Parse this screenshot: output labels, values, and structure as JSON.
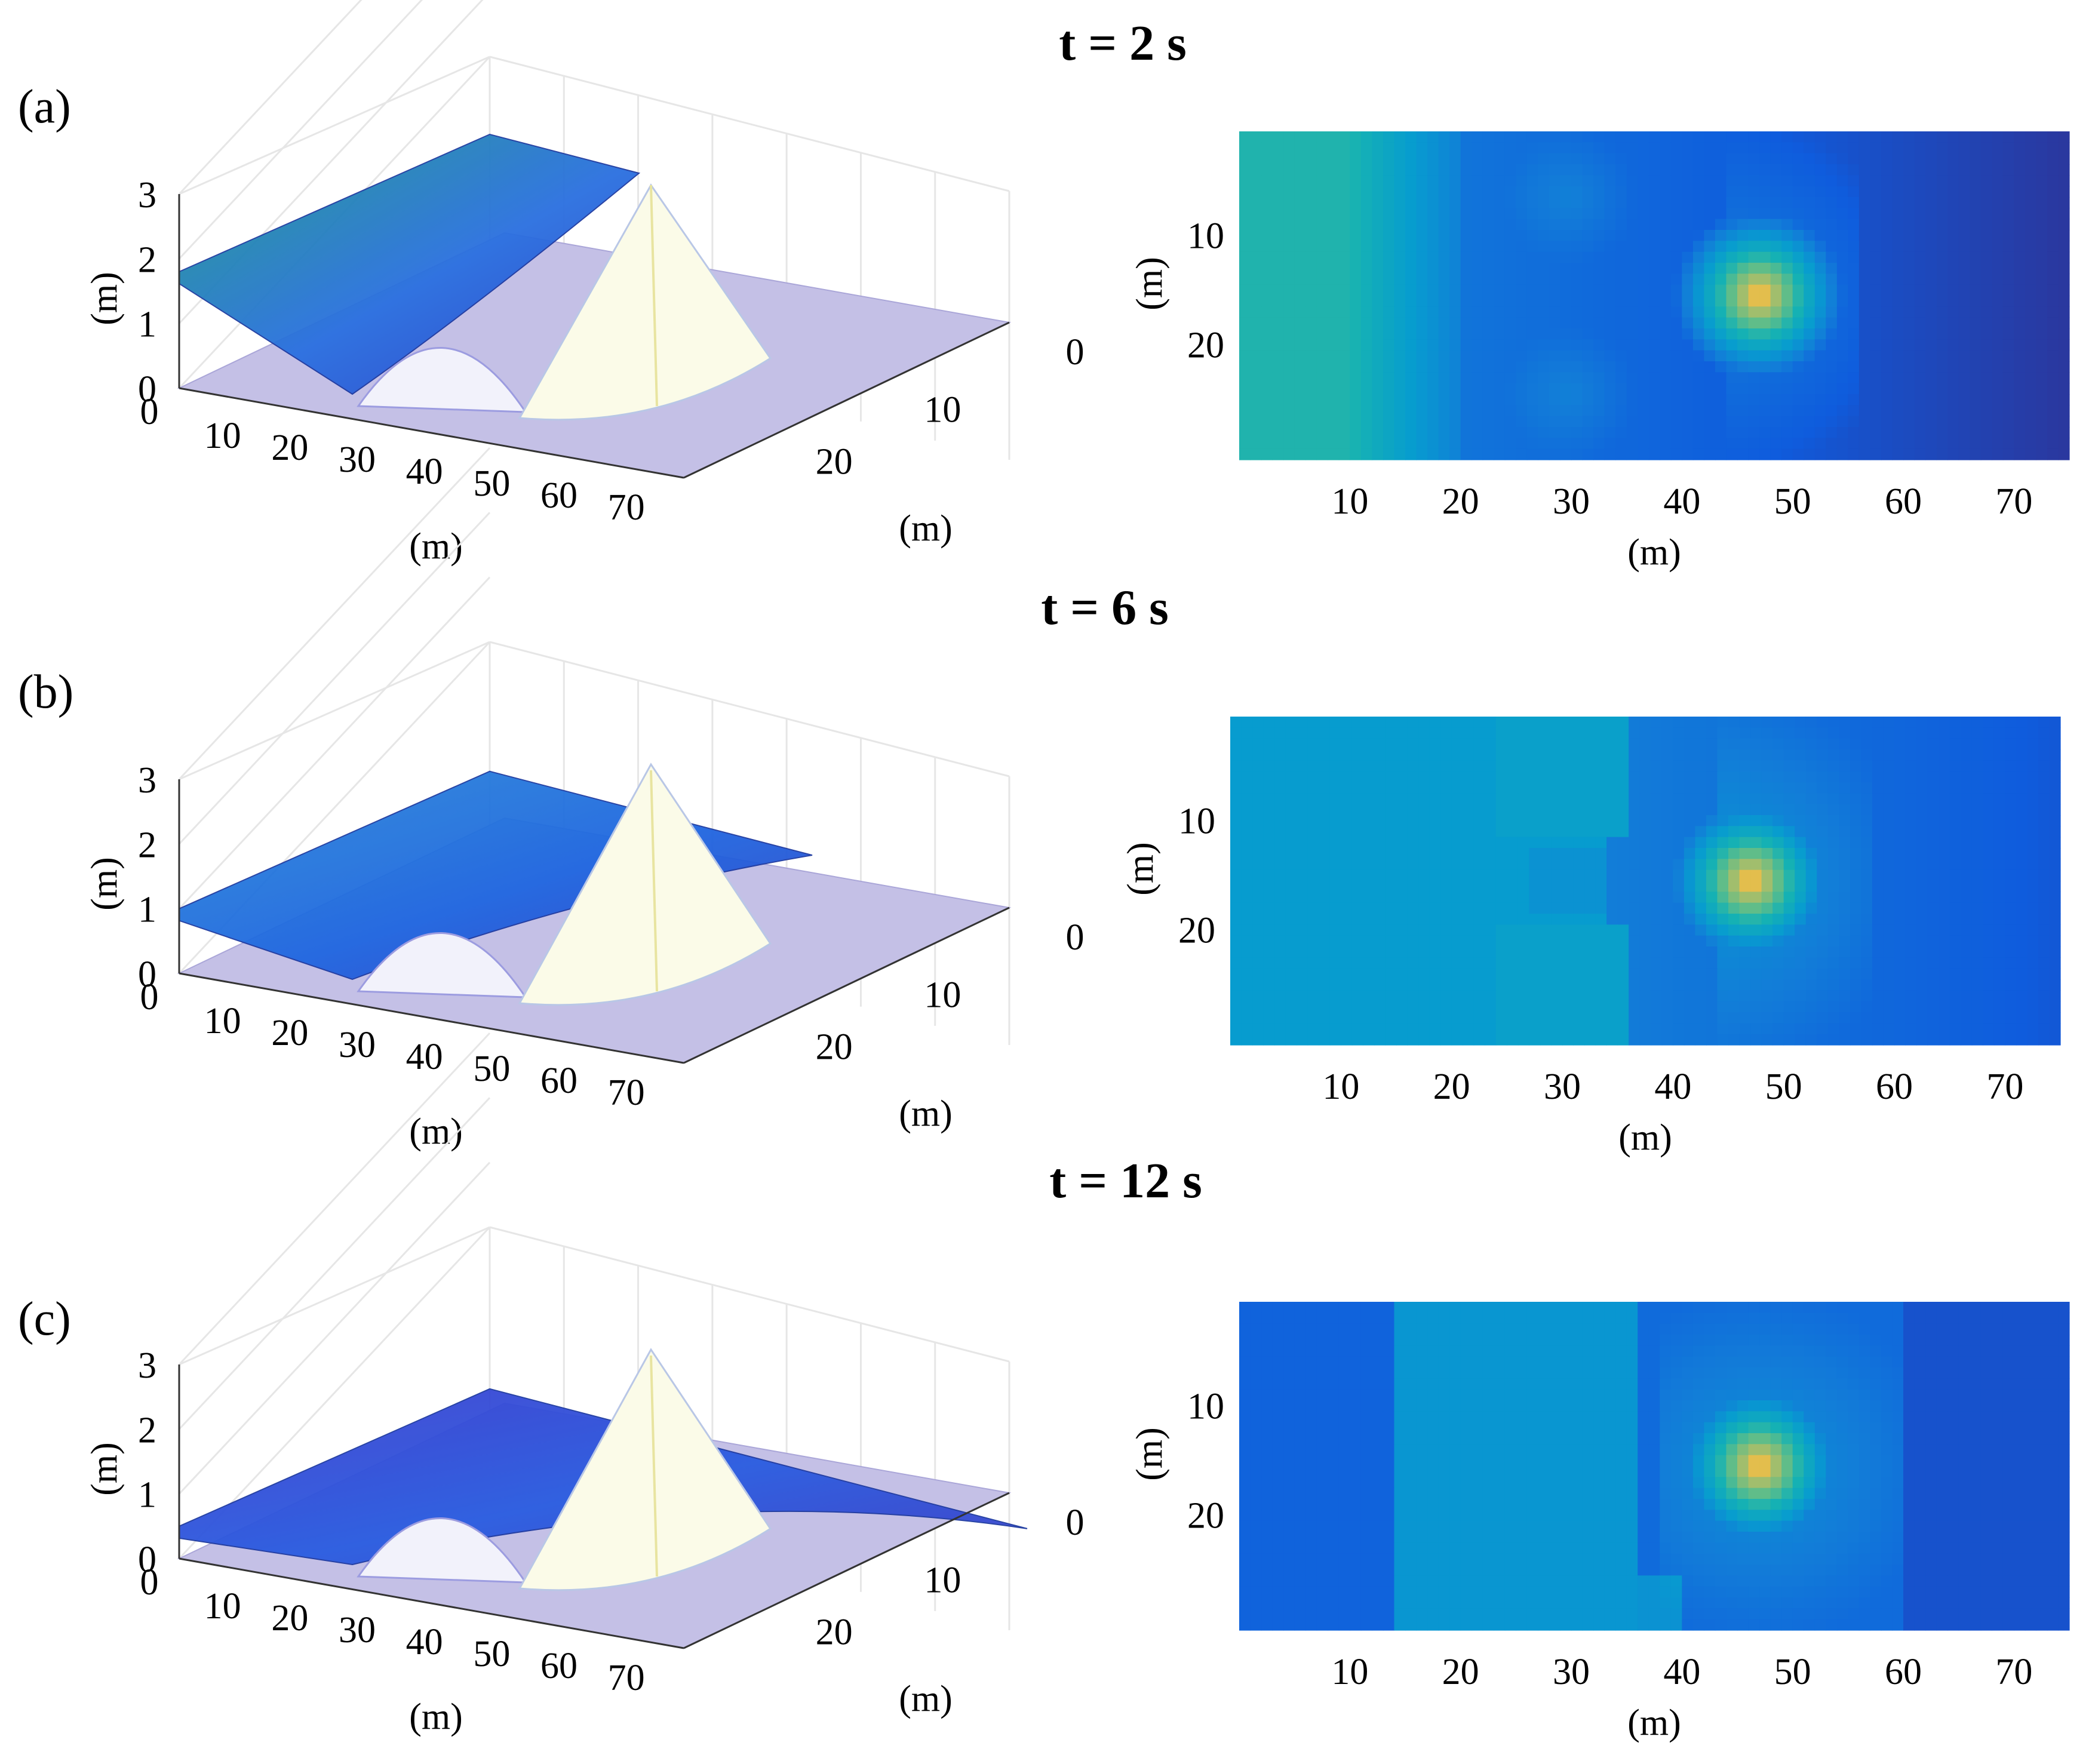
{
  "figure": {
    "panels": [
      {
        "label": "(a)",
        "title": "t = 2 s"
      },
      {
        "label": "(b)",
        "title": "t = 6 s"
      },
      {
        "label": "(c)",
        "title": "t = 12 s"
      }
    ]
  },
  "chart_data": [
    {
      "type": "surface3d",
      "panel": "(a)",
      "time_s": 2,
      "title": "t = 2 s",
      "x": {
        "label": "(m)",
        "ticks": [
          "0",
          "10",
          "20",
          "30",
          "40",
          "50",
          "60",
          "70"
        ],
        "range": [
          0,
          75
        ]
      },
      "y": {
        "label": "(m)",
        "ticks": [
          "0",
          "10",
          "20"
        ],
        "range": [
          0,
          30
        ]
      },
      "z": {
        "label": "(m)",
        "ticks": [
          "0",
          "1",
          "2",
          "3"
        ],
        "range": [
          0,
          3
        ]
      },
      "water_level_upstream_m": 1.8,
      "obstacles": [
        {
          "type": "large cone",
          "x": 47,
          "y": 15,
          "peak_m": 3.0
        },
        {
          "type": "small mound",
          "x": 30,
          "y": 6,
          "peak_m": 1.0
        },
        {
          "type": "small mound",
          "x": 30,
          "y": 24,
          "peak_m": 1.0
        }
      ]
    },
    {
      "type": "heatmap",
      "panel": "(a)",
      "time_s": 2,
      "x": {
        "label": "(m)",
        "ticks": [
          "10",
          "20",
          "30",
          "40",
          "50",
          "60",
          "70"
        ],
        "range": [
          0,
          75
        ]
      },
      "y": {
        "label": "(m)",
        "ticks": [
          "10",
          "20"
        ],
        "range": [
          0,
          30
        ]
      },
      "colormap": "parula"
    },
    {
      "type": "surface3d",
      "panel": "(b)",
      "time_s": 6,
      "title": "t = 6 s",
      "x": {
        "label": "(m)",
        "ticks": [
          "0",
          "10",
          "20",
          "30",
          "40",
          "50",
          "60",
          "70"
        ],
        "range": [
          0,
          75
        ]
      },
      "y": {
        "label": "(m)",
        "ticks": [
          "0",
          "10",
          "20"
        ],
        "range": [
          0,
          30
        ]
      },
      "z": {
        "label": "(m)",
        "ticks": [
          "0",
          "1",
          "2",
          "3"
        ],
        "range": [
          0,
          3
        ]
      },
      "water_level_upstream_m": 1.0
    },
    {
      "type": "heatmap",
      "panel": "(b)",
      "time_s": 6,
      "x": {
        "label": "(m)",
        "ticks": [
          "10",
          "20",
          "30",
          "40",
          "50",
          "60",
          "70"
        ],
        "range": [
          0,
          75
        ]
      },
      "y": {
        "label": "(m)",
        "ticks": [
          "10",
          "20"
        ],
        "range": [
          0,
          30
        ]
      },
      "colormap": "parula"
    },
    {
      "type": "surface3d",
      "panel": "(c)",
      "time_s": 12,
      "title": "t = 12 s",
      "x": {
        "label": "(m)",
        "ticks": [
          "0",
          "10",
          "20",
          "30",
          "40",
          "50",
          "60",
          "70"
        ],
        "range": [
          0,
          75
        ]
      },
      "y": {
        "label": "(m)",
        "ticks": [
          "0",
          "10",
          "20"
        ],
        "range": [
          0,
          30
        ]
      },
      "z": {
        "label": "(m)",
        "ticks": [
          "0",
          "1",
          "2",
          "3"
        ],
        "range": [
          0,
          3
        ]
      },
      "water_level_upstream_m": 0.5
    },
    {
      "type": "heatmap",
      "panel": "(c)",
      "time_s": 12,
      "x": {
        "label": "(m)",
        "ticks": [
          "10",
          "20",
          "30",
          "40",
          "50",
          "60",
          "70"
        ],
        "range": [
          0,
          75
        ]
      },
      "y": {
        "label": "(m)",
        "ticks": [
          "10",
          "20"
        ],
        "range": [
          0,
          30
        ]
      },
      "colormap": "parula"
    }
  ]
}
